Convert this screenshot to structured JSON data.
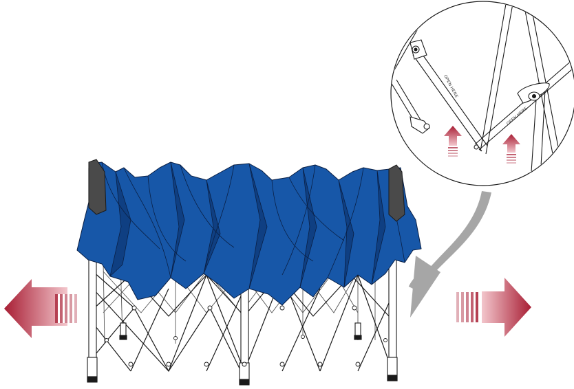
{
  "detail_callout": {
    "left_bar_label": "OPEN HERE",
    "right_bar_label": "OPEN HERE"
  },
  "colors": {
    "canopy_blue": "#1757a8",
    "canopy_dark": "#0f3f82",
    "frame_line": "#1a1a1a",
    "corner_cap": "#4a4a4a",
    "pointer_arrow": "#a6a6a6",
    "push_arrow": "#a81e34"
  },
  "arrows": {
    "left": "expand-left",
    "right": "expand-right"
  }
}
